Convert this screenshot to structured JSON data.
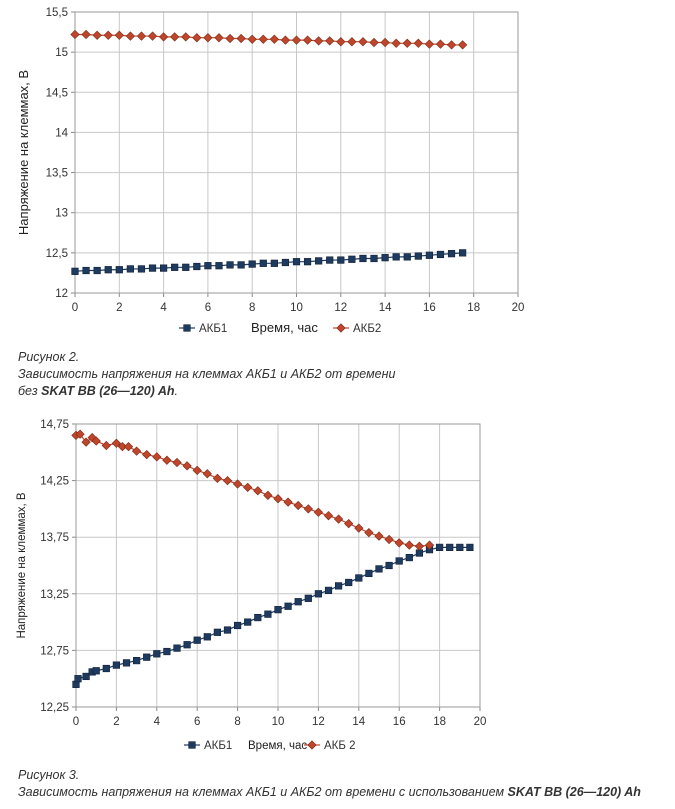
{
  "chart_data": [
    {
      "type": "line",
      "xlabel": "Время, час",
      "ylabel": "Напряжение на клеммах, В",
      "xlim": [
        0,
        20
      ],
      "ylim": [
        12,
        15.5
      ],
      "xticks": [
        "0",
        "2",
        "4",
        "6",
        "8",
        "10",
        "12",
        "14",
        "16",
        "18",
        "20"
      ],
      "yticks": [
        "12",
        "12,5",
        "13",
        "13,5",
        "14",
        "14,5",
        "15",
        "15,5"
      ],
      "grid": true,
      "legend_position": "bottom",
      "series": [
        {
          "name": "АКБ1",
          "color": "#1f3a5f",
          "marker": "square",
          "x": [
            0,
            0.5,
            1,
            1.5,
            2,
            2.5,
            3,
            3.5,
            4,
            4.5,
            5,
            5.5,
            6,
            6.5,
            7,
            7.5,
            8,
            8.5,
            9,
            9.5,
            10,
            10.5,
            11,
            11.5,
            12,
            12.5,
            13,
            13.5,
            14,
            14.5,
            15,
            15.5,
            16,
            16.5,
            17,
            17.5
          ],
          "y": [
            12.27,
            12.28,
            12.28,
            12.29,
            12.29,
            12.3,
            12.3,
            12.31,
            12.31,
            12.32,
            12.32,
            12.33,
            12.34,
            12.34,
            12.35,
            12.35,
            12.36,
            12.37,
            12.37,
            12.38,
            12.39,
            12.39,
            12.4,
            12.41,
            12.41,
            12.42,
            12.43,
            12.43,
            12.44,
            12.45,
            12.45,
            12.46,
            12.47,
            12.48,
            12.49,
            12.5
          ]
        },
        {
          "name": "АКБ2",
          "color": "#c0462b",
          "marker": "diamond",
          "x": [
            0,
            0.5,
            1,
            1.5,
            2,
            2.5,
            3,
            3.5,
            4,
            4.5,
            5,
            5.5,
            6,
            6.5,
            7,
            7.5,
            8,
            8.5,
            9,
            9.5,
            10,
            10.5,
            11,
            11.5,
            12,
            12.5,
            13,
            13.5,
            14,
            14.5,
            15,
            15.5,
            16,
            16.5,
            17,
            17.5
          ],
          "y": [
            15.22,
            15.22,
            15.21,
            15.21,
            15.21,
            15.2,
            15.2,
            15.2,
            15.19,
            15.19,
            15.19,
            15.18,
            15.18,
            15.18,
            15.17,
            15.17,
            15.16,
            15.16,
            15.16,
            15.15,
            15.15,
            15.15,
            15.14,
            15.14,
            15.13,
            15.13,
            15.13,
            15.12,
            15.12,
            15.11,
            15.11,
            15.11,
            15.1,
            15.1,
            15.09,
            15.09
          ]
        }
      ]
    },
    {
      "type": "line",
      "xlabel": "Время, час",
      "ylabel": "Напряжение на клеммах, В",
      "xlim": [
        0,
        20
      ],
      "ylim": [
        12.25,
        14.75
      ],
      "xticks": [
        "0",
        "2",
        "4",
        "6",
        "8",
        "10",
        "12",
        "14",
        "16",
        "18",
        "20"
      ],
      "yticks": [
        "12,25",
        "12,75",
        "13,25",
        "13,75",
        "14,25",
        "14,75"
      ],
      "grid": true,
      "legend_position": "bottom",
      "series": [
        {
          "name": "АКБ1",
          "color": "#1f3a5f",
          "marker": "square",
          "x": [
            0,
            0.1,
            0.5,
            0.8,
            1,
            1.5,
            2,
            2.5,
            3,
            3.5,
            4,
            4.5,
            5,
            5.5,
            6,
            6.5,
            7,
            7.5,
            8,
            8.5,
            9,
            9.5,
            10,
            10.5,
            11,
            11.5,
            12,
            12.5,
            13,
            13.5,
            14,
            14.5,
            15,
            15.5,
            16,
            16.5,
            17,
            17.5,
            18,
            18.5,
            19,
            19.5
          ],
          "y": [
            12.45,
            12.5,
            12.52,
            12.56,
            12.57,
            12.59,
            12.62,
            12.64,
            12.66,
            12.69,
            12.72,
            12.74,
            12.77,
            12.8,
            12.84,
            12.87,
            12.91,
            12.93,
            12.97,
            13.0,
            13.04,
            13.07,
            13.11,
            13.14,
            13.18,
            13.21,
            13.25,
            13.28,
            13.32,
            13.35,
            13.39,
            13.43,
            13.47,
            13.5,
            13.54,
            13.57,
            13.61,
            13.64,
            13.66,
            13.66,
            13.66,
            13.66
          ]
        },
        {
          "name": "АКБ 2",
          "color": "#c0462b",
          "marker": "diamond",
          "x": [
            0,
            0.2,
            0.5,
            0.8,
            1,
            1.5,
            2,
            2.3,
            2.6,
            3,
            3.5,
            4,
            4.5,
            5,
            5.5,
            6,
            6.5,
            7,
            7.5,
            8,
            8.5,
            9,
            9.5,
            10,
            10.5,
            11,
            11.5,
            12,
            12.5,
            13,
            13.5,
            14,
            14.5,
            15,
            15.5,
            16,
            16.5,
            17,
            17.5
          ],
          "y": [
            14.65,
            14.66,
            14.59,
            14.63,
            14.6,
            14.56,
            14.58,
            14.55,
            14.55,
            14.51,
            14.48,
            14.46,
            14.43,
            14.41,
            14.38,
            14.34,
            14.31,
            14.27,
            14.25,
            14.22,
            14.19,
            14.16,
            14.12,
            14.09,
            14.06,
            14.03,
            14.0,
            13.97,
            13.94,
            13.91,
            13.87,
            13.83,
            13.79,
            13.76,
            13.73,
            13.7,
            13.68,
            13.67,
            13.68
          ]
        }
      ]
    }
  ],
  "captions": {
    "fig2_title": "Рисунок 2.",
    "fig2_line1": "Зависимость напряжения на клеммах АКБ1 и АКБ2 от времени",
    "fig2_line2_prefix": "без ",
    "fig2_line2_bold": "SKAT BB (26—120) Ah",
    "fig2_line2_suffix": ".",
    "fig3_title": "Рисунок 3.",
    "fig3_line1_text": "Зависимость напряжения на клеммах АКБ1 и АКБ2 от времени с использованием ",
    "fig3_line1_bold": "SKAT BB (26—120) Ah"
  }
}
